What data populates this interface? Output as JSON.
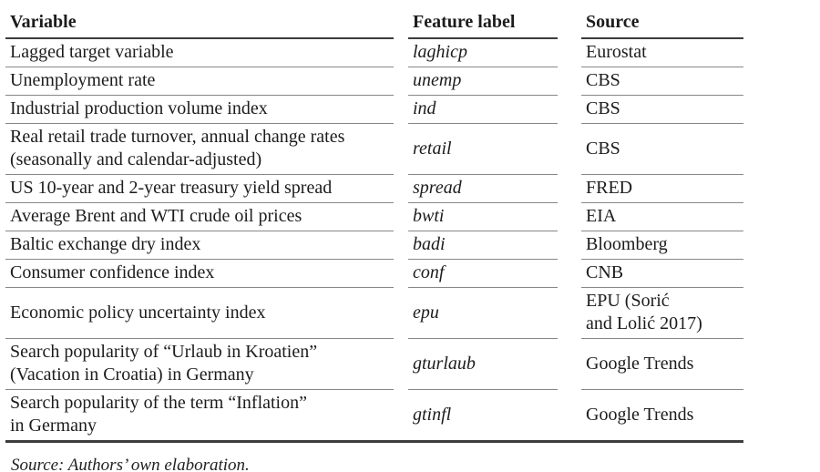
{
  "table": {
    "columns": [
      "Variable",
      "Feature label",
      "Source"
    ],
    "rows": [
      {
        "variable": "Lagged target variable",
        "feature_label": "laghicp",
        "source": "Eurostat"
      },
      {
        "variable": "Unemployment rate",
        "feature_label": "unemp",
        "source": "CBS"
      },
      {
        "variable": "Industrial production volume index",
        "feature_label": "ind",
        "source": "CBS"
      },
      {
        "variable": "Real retail trade turnover, annual change rates\n(seasonally and calendar-adjusted)",
        "feature_label": "retail",
        "source": "CBS"
      },
      {
        "variable": "US 10-year and 2-year treasury yield spread",
        "feature_label": "spread",
        "source": "FRED"
      },
      {
        "variable": "Average Brent and WTI crude oil prices",
        "feature_label": "bwti",
        "source": "EIA"
      },
      {
        "variable": "Baltic exchange dry index",
        "feature_label": "badi",
        "source": "Bloomberg"
      },
      {
        "variable": "Consumer confidence index",
        "feature_label": "conf",
        "source": "CNB"
      },
      {
        "variable": "Economic policy uncertainty index",
        "feature_label": "epu",
        "source": "EPU (Sorić\nand Lolić 2017)"
      },
      {
        "variable": "Search popularity of “Urlaub in Kroatien”\n(Vacation in Croatia) in Germany",
        "feature_label": "gturlaub",
        "source": "Google Trends"
      },
      {
        "variable": "Search popularity of the term “Inflation”\nin Germany",
        "feature_label": "gtinfl",
        "source": "Google Trends"
      }
    ]
  },
  "footer": {
    "note": "Source: Authors’ own elaboration."
  },
  "colors": {
    "text": "#1c1c1c",
    "rule_light": "#878787",
    "rule_heavy": "#3d3d3d",
    "background": "#ffffff"
  }
}
